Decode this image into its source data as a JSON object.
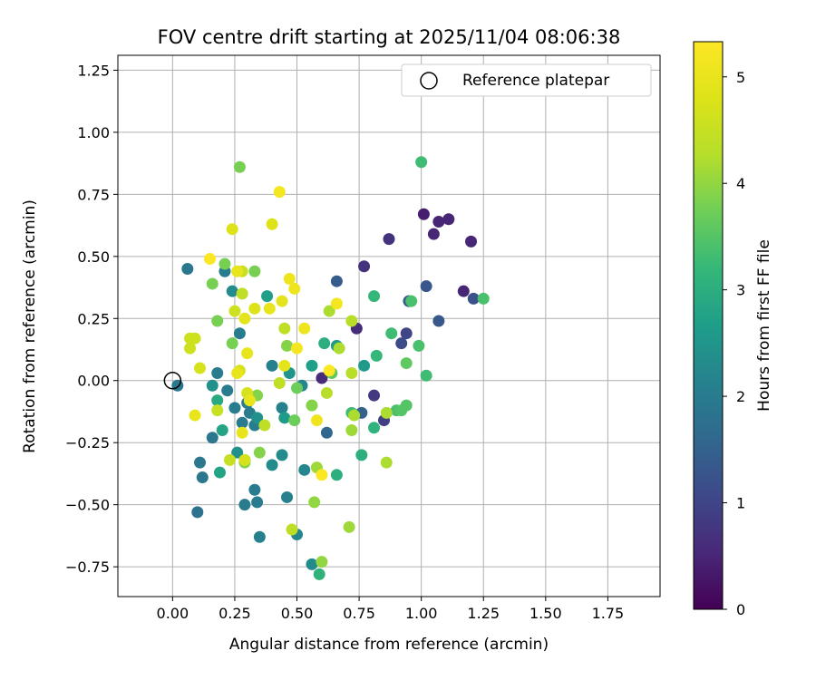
{
  "chart_data": {
    "type": "scatter",
    "title": "FOV centre drift starting at 2025/11/04 08:06:38",
    "xlabel": "Angular distance from reference (arcmin)",
    "ylabel": "Rotation from reference (arcmin)",
    "xlim": [
      -0.22,
      1.96
    ],
    "ylim": [
      -0.87,
      1.31
    ],
    "xticks": [
      0.0,
      0.25,
      0.5,
      0.75,
      1.0,
      1.25,
      1.5,
      1.75
    ],
    "xtick_labels": [
      "0.00",
      "0.25",
      "0.50",
      "0.75",
      "1.00",
      "1.25",
      "1.50",
      "1.75"
    ],
    "yticks": [
      -0.75,
      -0.5,
      -0.25,
      0.0,
      0.25,
      0.5,
      0.75,
      1.0,
      1.25
    ],
    "ytick_labels": [
      "−0.75",
      "−0.50",
      "−0.25",
      "0.00",
      "0.25",
      "0.50",
      "0.75",
      "1.00",
      "1.25"
    ],
    "grid": true,
    "legend": {
      "position": "top-right",
      "entries": [
        "Reference platepar"
      ]
    },
    "reference_point": {
      "name": "Reference platepar",
      "x": 0.0,
      "y": 0.0
    },
    "colorbar": {
      "label": "Hours from first FF file",
      "min": 0,
      "max": 5.33,
      "ticks": [
        0,
        1,
        2,
        3,
        4,
        5
      ],
      "tick_labels": [
        "0",
        "1",
        "2",
        "3",
        "4",
        "5"
      ],
      "colormap": "viridis"
    },
    "points": [
      {
        "x": 1.01,
        "y": 0.67,
        "h": 0.4
      },
      {
        "x": 1.07,
        "y": 0.64,
        "h": 0.5
      },
      {
        "x": 1.11,
        "y": 0.65,
        "h": 0.5
      },
      {
        "x": 1.05,
        "y": 0.59,
        "h": 0.5
      },
      {
        "x": 1.2,
        "y": 0.56,
        "h": 0.5
      },
      {
        "x": 1.17,
        "y": 0.36,
        "h": 0.5
      },
      {
        "x": 0.87,
        "y": 0.57,
        "h": 0.7
      },
      {
        "x": 0.77,
        "y": 0.46,
        "h": 0.7
      },
      {
        "x": 0.74,
        "y": 0.21,
        "h": 0.6
      },
      {
        "x": 0.6,
        "y": 0.01,
        "h": 0.6
      },
      {
        "x": 0.81,
        "y": -0.06,
        "h": 0.8
      },
      {
        "x": 0.85,
        "y": -0.16,
        "h": 0.9
      },
      {
        "x": 0.94,
        "y": 0.19,
        "h": 1.0
      },
      {
        "x": 0.92,
        "y": 0.15,
        "h": 1.1
      },
      {
        "x": 1.21,
        "y": 0.33,
        "h": 1.2
      },
      {
        "x": 1.02,
        "y": 0.38,
        "h": 1.3
      },
      {
        "x": 1.07,
        "y": 0.24,
        "h": 1.3
      },
      {
        "x": 0.95,
        "y": 0.32,
        "h": 1.4
      },
      {
        "x": 0.66,
        "y": 0.4,
        "h": 1.4
      },
      {
        "x": 0.76,
        "y": -0.13,
        "h": 1.5
      },
      {
        "x": 0.62,
        "y": -0.21,
        "h": 1.6
      },
      {
        "x": 0.1,
        "y": -0.53,
        "h": 1.8
      },
      {
        "x": 0.06,
        "y": 0.45,
        "h": 1.9
      },
      {
        "x": 0.02,
        "y": -0.02,
        "h": 1.9
      },
      {
        "x": 0.12,
        "y": -0.39,
        "h": 1.9
      },
      {
        "x": 0.11,
        "y": -0.33,
        "h": 1.9
      },
      {
        "x": 0.16,
        "y": -0.23,
        "h": 1.9
      },
      {
        "x": 0.18,
        "y": 0.03,
        "h": 2.0
      },
      {
        "x": 0.22,
        "y": -0.04,
        "h": 2.0
      },
      {
        "x": 0.21,
        "y": 0.44,
        "h": 2.0
      },
      {
        "x": 0.25,
        "y": -0.11,
        "h": 2.0
      },
      {
        "x": 0.27,
        "y": 0.19,
        "h": 2.0
      },
      {
        "x": 0.28,
        "y": -0.17,
        "h": 2.0
      },
      {
        "x": 0.3,
        "y": -0.09,
        "h": 2.0
      },
      {
        "x": 0.31,
        "y": -0.13,
        "h": 2.0
      },
      {
        "x": 0.33,
        "y": -0.18,
        "h": 2.0
      },
      {
        "x": 0.33,
        "y": -0.44,
        "h": 2.0
      },
      {
        "x": 0.29,
        "y": -0.5,
        "h": 2.0
      },
      {
        "x": 0.34,
        "y": -0.49,
        "h": 2.0
      },
      {
        "x": 0.35,
        "y": -0.63,
        "h": 2.1
      },
      {
        "x": 0.4,
        "y": 0.06,
        "h": 2.1
      },
      {
        "x": 0.44,
        "y": -0.11,
        "h": 2.1
      },
      {
        "x": 0.46,
        "y": -0.47,
        "h": 2.1
      },
      {
        "x": 0.5,
        "y": -0.62,
        "h": 2.2
      },
      {
        "x": 0.52,
        "y": -0.02,
        "h": 2.2
      },
      {
        "x": 0.53,
        "y": -0.36,
        "h": 2.2
      },
      {
        "x": 0.56,
        "y": -0.74,
        "h": 2.3
      },
      {
        "x": 0.44,
        "y": -0.3,
        "h": 2.3
      },
      {
        "x": 0.4,
        "y": -0.34,
        "h": 2.3
      },
      {
        "x": 0.24,
        "y": 0.36,
        "h": 2.3
      },
      {
        "x": 0.34,
        "y": -0.15,
        "h": 2.4
      },
      {
        "x": 0.26,
        "y": -0.29,
        "h": 2.4
      },
      {
        "x": 0.16,
        "y": -0.02,
        "h": 2.4
      },
      {
        "x": 0.47,
        "y": 0.03,
        "h": 2.5
      },
      {
        "x": 0.77,
        "y": 0.06,
        "h": 2.6
      },
      {
        "x": 0.66,
        "y": 0.14,
        "h": 2.6
      },
      {
        "x": 0.45,
        "y": -0.15,
        "h": 2.6
      },
      {
        "x": 0.38,
        "y": 0.34,
        "h": 2.7
      },
      {
        "x": 0.56,
        "y": 0.06,
        "h": 2.7
      },
      {
        "x": 0.2,
        "y": -0.2,
        "h": 2.8
      },
      {
        "x": 0.19,
        "y": -0.37,
        "h": 2.8
      },
      {
        "x": 0.29,
        "y": -0.32,
        "h": 2.9
      },
      {
        "x": 0.18,
        "y": -0.08,
        "h": 2.9
      },
      {
        "x": 0.61,
        "y": 0.15,
        "h": 3.0
      },
      {
        "x": 0.66,
        "y": -0.38,
        "h": 3.0
      },
      {
        "x": 0.76,
        "y": -0.3,
        "h": 3.0
      },
      {
        "x": 0.59,
        "y": -0.78,
        "h": 3.1
      },
      {
        "x": 0.81,
        "y": -0.19,
        "h": 3.1
      },
      {
        "x": 0.81,
        "y": 0.34,
        "h": 3.2
      },
      {
        "x": 0.82,
        "y": 0.1,
        "h": 3.2
      },
      {
        "x": 0.88,
        "y": 0.19,
        "h": 3.3
      },
      {
        "x": 0.72,
        "y": -0.13,
        "h": 3.3
      },
      {
        "x": 1.0,
        "y": 0.88,
        "h": 3.3
      },
      {
        "x": 1.02,
        "y": 0.02,
        "h": 3.3
      },
      {
        "x": 1.25,
        "y": 0.33,
        "h": 3.4
      },
      {
        "x": 0.96,
        "y": 0.32,
        "h": 3.4
      },
      {
        "x": 0.99,
        "y": 0.14,
        "h": 3.4
      },
      {
        "x": 0.9,
        "y": -0.12,
        "h": 3.4
      },
      {
        "x": 0.92,
        "y": -0.12,
        "h": 3.5
      },
      {
        "x": 0.94,
        "y": -0.1,
        "h": 3.5
      },
      {
        "x": 0.94,
        "y": 0.07,
        "h": 3.6
      },
      {
        "x": 0.64,
        "y": 0.03,
        "h": 3.6
      },
      {
        "x": 0.49,
        "y": -0.16,
        "h": 3.7
      },
      {
        "x": 0.5,
        "y": -0.03,
        "h": 3.7
      },
      {
        "x": 0.33,
        "y": 0.44,
        "h": 3.8
      },
      {
        "x": 0.27,
        "y": 0.86,
        "h": 3.8
      },
      {
        "x": 0.21,
        "y": 0.47,
        "h": 3.8
      },
      {
        "x": 0.16,
        "y": 0.39,
        "h": 3.8
      },
      {
        "x": 0.18,
        "y": 0.24,
        "h": 3.8
      },
      {
        "x": 0.24,
        "y": 0.15,
        "h": 3.8
      },
      {
        "x": 0.34,
        "y": -0.06,
        "h": 3.9
      },
      {
        "x": 0.29,
        "y": -0.33,
        "h": 3.9
      },
      {
        "x": 0.35,
        "y": -0.29,
        "h": 3.9
      },
      {
        "x": 0.46,
        "y": 0.14,
        "h": 3.9
      },
      {
        "x": 0.56,
        "y": -0.1,
        "h": 3.9
      },
      {
        "x": 0.6,
        "y": -0.73,
        "h": 4.0
      },
      {
        "x": 0.57,
        "y": -0.49,
        "h": 4.0
      },
      {
        "x": 0.58,
        "y": -0.35,
        "h": 4.1
      },
      {
        "x": 0.71,
        "y": -0.59,
        "h": 4.1
      },
      {
        "x": 0.72,
        "y": -0.2,
        "h": 4.1
      },
      {
        "x": 0.73,
        "y": -0.14,
        "h": 4.2
      },
      {
        "x": 0.67,
        "y": 0.13,
        "h": 4.2
      },
      {
        "x": 0.63,
        "y": 0.28,
        "h": 4.2
      },
      {
        "x": 0.86,
        "y": -0.33,
        "h": 4.2
      },
      {
        "x": 0.86,
        "y": -0.13,
        "h": 4.2
      },
      {
        "x": 0.62,
        "y": -0.05,
        "h": 4.3
      },
      {
        "x": 0.72,
        "y": 0.24,
        "h": 4.3
      },
      {
        "x": 0.72,
        "y": 0.03,
        "h": 4.3
      },
      {
        "x": 0.48,
        "y": -0.6,
        "h": 4.4
      },
      {
        "x": 0.43,
        "y": -0.01,
        "h": 4.4
      },
      {
        "x": 0.37,
        "y": -0.18,
        "h": 4.4
      },
      {
        "x": 0.45,
        "y": 0.21,
        "h": 4.4
      },
      {
        "x": 0.28,
        "y": 0.35,
        "h": 4.4
      },
      {
        "x": 0.18,
        "y": -0.12,
        "h": 4.5
      },
      {
        "x": 0.23,
        "y": -0.32,
        "h": 4.5
      },
      {
        "x": 0.28,
        "y": 0.44,
        "h": 4.5
      },
      {
        "x": 0.25,
        "y": 0.28,
        "h": 4.6
      },
      {
        "x": 0.09,
        "y": 0.17,
        "h": 4.6
      },
      {
        "x": 0.07,
        "y": 0.13,
        "h": 4.6
      },
      {
        "x": 0.07,
        "y": 0.17,
        "h": 4.6
      },
      {
        "x": 0.11,
        "y": 0.05,
        "h": 4.7
      },
      {
        "x": 0.27,
        "y": 0.04,
        "h": 4.7
      },
      {
        "x": 0.29,
        "y": -0.32,
        "h": 4.7
      },
      {
        "x": 0.3,
        "y": -0.05,
        "h": 4.7
      },
      {
        "x": 0.24,
        "y": 0.61,
        "h": 4.8
      },
      {
        "x": 0.33,
        "y": 0.29,
        "h": 4.8
      },
      {
        "x": 0.4,
        "y": 0.63,
        "h": 4.8
      },
      {
        "x": 0.44,
        "y": 0.32,
        "h": 4.9
      },
      {
        "x": 0.45,
        "y": 0.06,
        "h": 4.9
      },
      {
        "x": 0.29,
        "y": 0.25,
        "h": 4.9
      },
      {
        "x": 0.09,
        "y": -0.14,
        "h": 5.0
      },
      {
        "x": 0.26,
        "y": 0.03,
        "h": 5.0
      },
      {
        "x": 0.28,
        "y": -0.21,
        "h": 5.0
      },
      {
        "x": 0.3,
        "y": 0.11,
        "h": 5.0
      },
      {
        "x": 0.26,
        "y": 0.44,
        "h": 5.0
      },
      {
        "x": 0.39,
        "y": 0.29,
        "h": 5.0
      },
      {
        "x": 0.31,
        "y": -0.08,
        "h": 5.0
      },
      {
        "x": 0.47,
        "y": 0.41,
        "h": 5.1
      },
      {
        "x": 0.49,
        "y": 0.37,
        "h": 5.1
      },
      {
        "x": 0.53,
        "y": 0.21,
        "h": 5.1
      },
      {
        "x": 0.58,
        "y": -0.16,
        "h": 5.1
      },
      {
        "x": 0.5,
        "y": 0.13,
        "h": 5.2
      },
      {
        "x": 0.66,
        "y": 0.31,
        "h": 5.2
      },
      {
        "x": 0.43,
        "y": 0.76,
        "h": 5.2
      },
      {
        "x": 0.15,
        "y": 0.49,
        "h": 5.3
      },
      {
        "x": 0.63,
        "y": 0.04,
        "h": 5.3
      },
      {
        "x": 0.6,
        "y": -0.38,
        "h": 5.3
      }
    ]
  }
}
